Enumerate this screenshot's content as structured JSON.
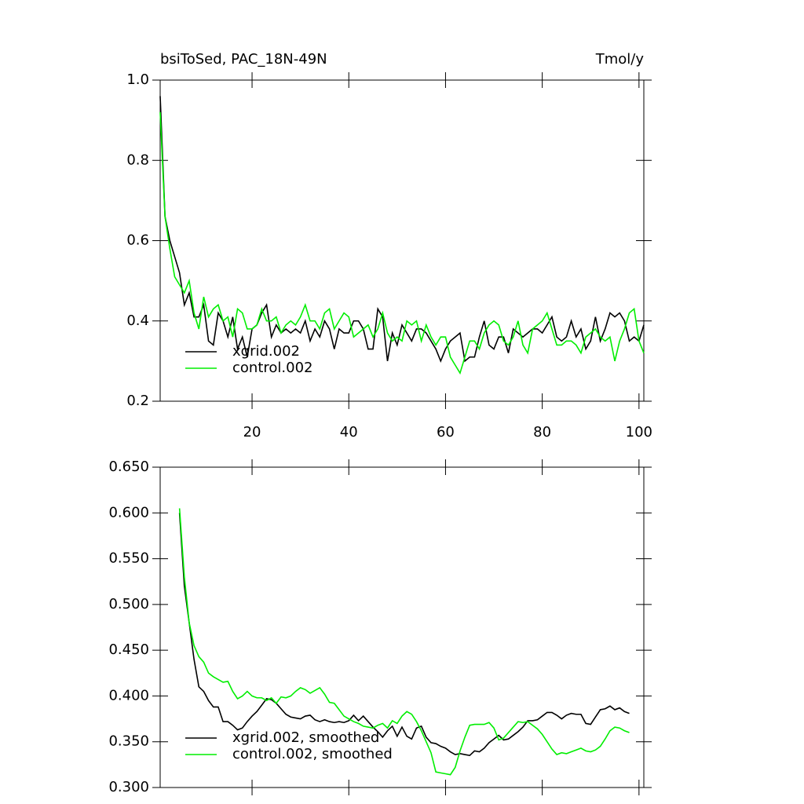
{
  "chart_data": [
    {
      "type": "line",
      "title": "bsiToSed, PAC_18N-49N",
      "units": "Tmol/y",
      "x": [
        1,
        2,
        3,
        4,
        5,
        6,
        7,
        8,
        9,
        10,
        11,
        12,
        13,
        14,
        15,
        16,
        17,
        18,
        19,
        20,
        21,
        22,
        23,
        24,
        25,
        26,
        27,
        28,
        29,
        30,
        31,
        32,
        33,
        34,
        35,
        36,
        37,
        38,
        39,
        40,
        41,
        42,
        43,
        44,
        45,
        46,
        47,
        48,
        49,
        50,
        51,
        52,
        53,
        54,
        55,
        56,
        57,
        58,
        59,
        60,
        61,
        62,
        63,
        64,
        65,
        66,
        67,
        68,
        69,
        70,
        71,
        72,
        73,
        74,
        75,
        76,
        77,
        78,
        79,
        80,
        81,
        82,
        83,
        84,
        85,
        86,
        87,
        88,
        89,
        90,
        91,
        92,
        93,
        94,
        95,
        96,
        97,
        98,
        99,
        100,
        101
      ],
      "series": [
        {
          "name": "xgrid.002",
          "color": "#000000",
          "values": [
            0.96,
            0.66,
            0.6,
            0.56,
            0.52,
            0.44,
            0.47,
            0.41,
            0.41,
            0.44,
            0.35,
            0.34,
            0.42,
            0.4,
            0.36,
            0.41,
            0.33,
            0.36,
            0.31,
            0.38,
            0.39,
            0.42,
            0.44,
            0.36,
            0.39,
            0.37,
            0.38,
            0.37,
            0.38,
            0.37,
            0.4,
            0.35,
            0.38,
            0.36,
            0.4,
            0.38,
            0.33,
            0.38,
            0.37,
            0.37,
            0.4,
            0.4,
            0.38,
            0.33,
            0.33,
            0.43,
            0.41,
            0.3,
            0.37,
            0.34,
            0.39,
            0.37,
            0.35,
            0.38,
            0.38,
            0.37,
            0.35,
            0.33,
            0.3,
            0.33,
            0.35,
            0.36,
            0.37,
            0.3,
            0.31,
            0.31,
            0.36,
            0.4,
            0.34,
            0.33,
            0.36,
            0.36,
            0.32,
            0.38,
            0.37,
            0.36,
            0.37,
            0.38,
            0.38,
            0.37,
            0.39,
            0.41,
            0.36,
            0.35,
            0.36,
            0.4,
            0.36,
            0.38,
            0.33,
            0.35,
            0.41,
            0.35,
            0.38,
            0.42,
            0.41,
            0.42,
            0.4,
            0.35,
            0.36,
            0.35,
            0.39
          ]
        },
        {
          "name": "control.002",
          "color": "#00ee00",
          "values": [
            0.92,
            0.66,
            0.58,
            0.51,
            0.49,
            0.47,
            0.5,
            0.42,
            0.38,
            0.46,
            0.41,
            0.43,
            0.44,
            0.4,
            0.41,
            0.36,
            0.43,
            0.42,
            0.38,
            0.38,
            0.39,
            0.43,
            0.4,
            0.4,
            0.41,
            0.37,
            0.39,
            0.4,
            0.39,
            0.41,
            0.44,
            0.4,
            0.4,
            0.38,
            0.42,
            0.43,
            0.38,
            0.4,
            0.42,
            0.41,
            0.36,
            0.37,
            0.38,
            0.39,
            0.36,
            0.38,
            0.42,
            0.37,
            0.35,
            0.36,
            0.35,
            0.4,
            0.39,
            0.4,
            0.35,
            0.39,
            0.36,
            0.34,
            0.36,
            0.36,
            0.31,
            0.29,
            0.27,
            0.31,
            0.35,
            0.35,
            0.33,
            0.37,
            0.39,
            0.4,
            0.39,
            0.35,
            0.34,
            0.36,
            0.4,
            0.34,
            0.32,
            0.38,
            0.39,
            0.4,
            0.42,
            0.38,
            0.34,
            0.34,
            0.35,
            0.35,
            0.34,
            0.32,
            0.36,
            0.37,
            0.38,
            0.36,
            0.35,
            0.36,
            0.3,
            0.35,
            0.38,
            0.42,
            0.43,
            0.35,
            0.32
          ]
        }
      ],
      "xlim": [
        1,
        101
      ],
      "xticks": [
        20,
        40,
        60,
        80,
        100
      ],
      "xtick_labels": true,
      "ylim": [
        0.2,
        1
      ],
      "yticks": [
        0.2,
        0.4,
        0.6,
        0.8,
        {
          "value": 1,
          "label": "1.0"
        }
      ],
      "legend": "lower left"
    },
    {
      "type": "line",
      "x": [
        5,
        6,
        7,
        8,
        9,
        10,
        11,
        12,
        13,
        14,
        15,
        16,
        17,
        18,
        19,
        20,
        21,
        22,
        23,
        24,
        25,
        26,
        27,
        28,
        29,
        30,
        31,
        32,
        33,
        34,
        35,
        36,
        37,
        38,
        39,
        40,
        41,
        42,
        43,
        44,
        45,
        46,
        47,
        48,
        49,
        50,
        51,
        52,
        53,
        54,
        55,
        56,
        57,
        58,
        59,
        60,
        61,
        62,
        63,
        64,
        65,
        66,
        67,
        68,
        69,
        70,
        71,
        72,
        73,
        74,
        75,
        76,
        77,
        78,
        79,
        80,
        81,
        82,
        83,
        84,
        85,
        86,
        87,
        88,
        89,
        90,
        91,
        92,
        93,
        94,
        95,
        96,
        97,
        98
      ],
      "series": [
        {
          "name": "xgrid.002, smoothed",
          "color": "#000000",
          "values": [
            0.6,
            0.52,
            0.48,
            0.44,
            0.41,
            0.405,
            0.395,
            0.388,
            0.388,
            0.372,
            0.372,
            0.368,
            0.363,
            0.365,
            0.372,
            0.378,
            0.383,
            0.39,
            0.397,
            0.396,
            0.392,
            0.386,
            0.38,
            0.377,
            0.376,
            0.375,
            0.378,
            0.379,
            0.374,
            0.372,
            0.374,
            0.372,
            0.371,
            0.372,
            0.371,
            0.373,
            0.379,
            0.373,
            0.378,
            0.372,
            0.366,
            0.361,
            0.355,
            0.362,
            0.367,
            0.356,
            0.366,
            0.356,
            0.353,
            0.365,
            0.367,
            0.355,
            0.349,
            0.348,
            0.345,
            0.343,
            0.339,
            0.336,
            0.337,
            0.336,
            0.335,
            0.34,
            0.339,
            0.343,
            0.349,
            0.353,
            0.357,
            0.352,
            0.353,
            0.357,
            0.361,
            0.366,
            0.373,
            0.373,
            0.374,
            0.378,
            0.382,
            0.382,
            0.379,
            0.375,
            0.379,
            0.381,
            0.38,
            0.38,
            0.37,
            0.369,
            0.377,
            0.385,
            0.386,
            0.389,
            0.385,
            0.387,
            0.383,
            0.381
          ]
        },
        {
          "name": "control.002, smoothed",
          "color": "#00ee00",
          "values": [
            0.605,
            0.53,
            0.48,
            0.455,
            0.443,
            0.437,
            0.425,
            0.421,
            0.418,
            0.415,
            0.416,
            0.405,
            0.397,
            0.4,
            0.405,
            0.4,
            0.398,
            0.398,
            0.395,
            0.398,
            0.392,
            0.399,
            0.398,
            0.4,
            0.405,
            0.409,
            0.407,
            0.403,
            0.406,
            0.409,
            0.402,
            0.393,
            0.392,
            0.385,
            0.378,
            0.375,
            0.372,
            0.37,
            0.367,
            0.366,
            0.365,
            0.368,
            0.37,
            0.365,
            0.373,
            0.37,
            0.378,
            0.383,
            0.38,
            0.372,
            0.362,
            0.35,
            0.338,
            0.317,
            0.316,
            0.315,
            0.314,
            0.322,
            0.34,
            0.355,
            0.368,
            0.369,
            0.369,
            0.369,
            0.371,
            0.365,
            0.352,
            0.354,
            0.36,
            0.366,
            0.372,
            0.371,
            0.372,
            0.368,
            0.364,
            0.358,
            0.35,
            0.342,
            0.336,
            0.338,
            0.337,
            0.339,
            0.341,
            0.343,
            0.34,
            0.339,
            0.341,
            0.345,
            0.353,
            0.362,
            0.366,
            0.365,
            0.362,
            0.36
          ]
        }
      ],
      "xlim": [
        1,
        101
      ],
      "xticks": [
        20,
        40,
        60,
        80,
        100
      ],
      "xtick_labels": false,
      "ylim": [
        0.3,
        0.65
      ],
      "yticks": [
        {
          "value": 0.3,
          "label": "0.300"
        },
        {
          "value": 0.35,
          "label": "0.350"
        },
        {
          "value": 0.4,
          "label": "0.400"
        },
        {
          "value": 0.45,
          "label": "0.450"
        },
        {
          "value": 0.5,
          "label": "0.500"
        },
        {
          "value": 0.55,
          "label": "0.550"
        },
        {
          "value": 0.6,
          "label": "0.600"
        },
        {
          "value": 0.65,
          "label": "0.650"
        }
      ],
      "legend": "lower left"
    }
  ]
}
